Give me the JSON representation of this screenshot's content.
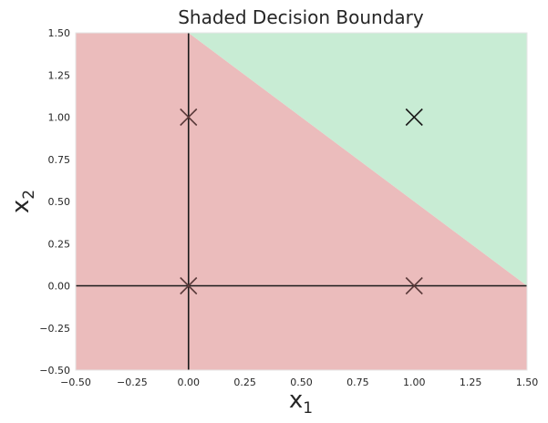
{
  "chart_data": {
    "type": "scatter",
    "title": "Shaded Decision Boundary",
    "xlabel": {
      "base": "x",
      "subscript": "1"
    },
    "ylabel": {
      "base": "x",
      "subscript": "2"
    },
    "xlim": [
      -0.5,
      1.5
    ],
    "ylim": [
      -0.5,
      1.5
    ],
    "xticks": [
      "−0.50",
      "−0.25",
      "0.00",
      "0.25",
      "0.50",
      "0.75",
      "1.00",
      "1.25",
      "1.50"
    ],
    "yticks": [
      "−0.50",
      "−0.25",
      "0.00",
      "0.25",
      "0.50",
      "0.75",
      "1.00",
      "1.25",
      "1.50"
    ],
    "xtick_values": [
      -0.5,
      -0.25,
      0,
      0.25,
      0.5,
      0.75,
      1.0,
      1.25,
      1.5
    ],
    "ytick_values": [
      -0.5,
      -0.25,
      0,
      0.25,
      0.5,
      0.75,
      1.0,
      1.25,
      1.5
    ],
    "grid": false,
    "decision_boundary": {
      "line": {
        "x1_plus_x2_equals": 1.5
      },
      "regions": [
        {
          "side": "above",
          "color": "#c8ecd4"
        },
        {
          "side": "below",
          "color": "#ebbcbc"
        }
      ]
    },
    "reference_lines": [
      {
        "orientation": "vertical",
        "x": 0,
        "color": "#1a1a1a"
      },
      {
        "orientation": "horizontal",
        "y": 0,
        "color": "#1a1a1a"
      }
    ],
    "points": [
      {
        "x": 0,
        "y": 0,
        "marker": "x",
        "color": "#5a3a3a"
      },
      {
        "x": 0,
        "y": 1,
        "marker": "x",
        "color": "#5a3a3a"
      },
      {
        "x": 1,
        "y": 0,
        "marker": "x",
        "color": "#5a3a3a"
      },
      {
        "x": 1,
        "y": 1,
        "marker": "x",
        "color": "#1a1a1a"
      }
    ]
  }
}
